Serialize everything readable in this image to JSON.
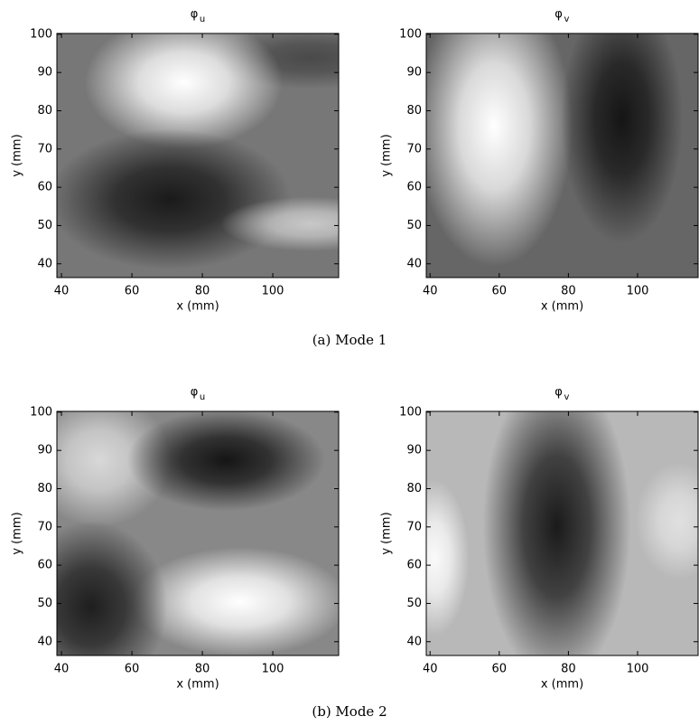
{
  "chart_data": [
    {
      "type": "contour",
      "title": "φ",
      "title_subscript": "u",
      "xlabel": "x (mm)",
      "ylabel": "y (mm)",
      "xlim": [
        38.7,
        118.7
      ],
      "ylim": [
        36.4,
        100.2
      ],
      "xticks": [
        40,
        60,
        80,
        100
      ],
      "yticks": [
        40,
        50,
        60,
        70,
        80,
        90,
        100
      ]
    },
    {
      "type": "contour",
      "title": "φ",
      "title_subscript": "v",
      "xlabel": "x (mm)",
      "ylabel": "y (mm)",
      "xlim": [
        38.9,
        117.5
      ],
      "ylim": [
        36.4,
        100.2
      ],
      "xticks": [
        40,
        60,
        80,
        100
      ],
      "yticks": [
        40,
        50,
        60,
        70,
        80,
        90,
        100
      ]
    },
    {
      "type": "contour",
      "title": "φ",
      "title_subscript": "u",
      "xlabel": "x (mm)",
      "ylabel": "y (mm)",
      "xlim": [
        38.7,
        118.7
      ],
      "ylim": [
        36.4,
        100.2
      ],
      "xticks": [
        40,
        60,
        80,
        100
      ],
      "yticks": [
        40,
        50,
        60,
        70,
        80,
        90,
        100
      ]
    },
    {
      "type": "contour",
      "title": "φ",
      "title_subscript": "v",
      "xlabel": "x (mm)",
      "ylabel": "y (mm)",
      "xlim": [
        38.9,
        117.5
      ],
      "ylim": [
        36.4,
        100.2
      ],
      "xticks": [
        40,
        60,
        80,
        100
      ],
      "yticks": [
        40,
        50,
        60,
        70,
        80,
        90,
        100
      ]
    }
  ],
  "captions": [
    "(a)  Mode 1",
    "(b)  Mode 2"
  ]
}
